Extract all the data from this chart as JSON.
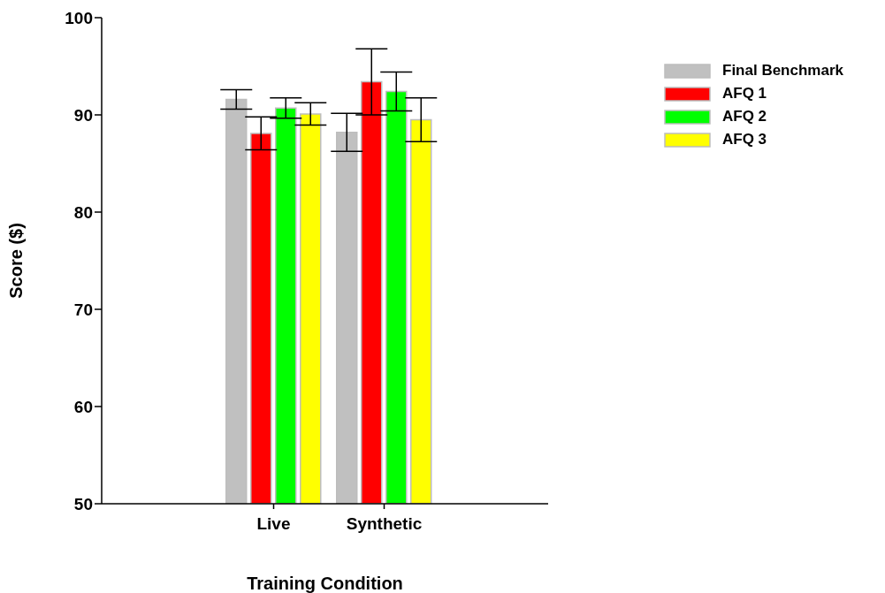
{
  "chart_data": {
    "type": "bar",
    "xlabel": "Training Condition",
    "ylabel": "Score ($)",
    "categories": [
      "Live",
      "Synthetic"
    ],
    "series": [
      {
        "name": "Final Benchmark",
        "color": "#c0c0c0",
        "values": [
          91.6,
          88.2
        ],
        "errors": [
          1.0,
          1.95
        ]
      },
      {
        "name": "AFQ 1",
        "color": "#ff0000",
        "values": [
          88.1,
          93.4
        ],
        "errors": [
          1.7,
          3.4
        ]
      },
      {
        "name": "AFQ 2",
        "color": "#00ff00",
        "values": [
          90.7,
          92.4
        ],
        "errors": [
          1.05,
          2.0
        ]
      },
      {
        "name": "AFQ 3",
        "color": "#ffff00",
        "values": [
          90.1,
          89.5
        ],
        "errors": [
          1.15,
          2.25
        ]
      }
    ],
    "ylim": [
      50,
      100
    ],
    "yticks": [
      50,
      60,
      70,
      80,
      90,
      100
    ],
    "grid": false,
    "legend": "top right"
  }
}
